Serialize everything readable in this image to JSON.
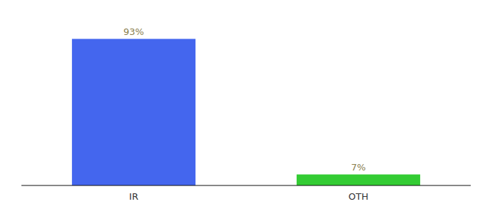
{
  "chart_data": {
    "type": "bar",
    "categories": [
      "IR",
      "OTH"
    ],
    "values": [
      93,
      7
    ],
    "value_labels": [
      "93%",
      "7%"
    ],
    "colors": [
      "#4466ee",
      "#33cc33"
    ],
    "ylim": [
      0,
      105
    ],
    "data_labels": true,
    "tick_labels": "x"
  }
}
